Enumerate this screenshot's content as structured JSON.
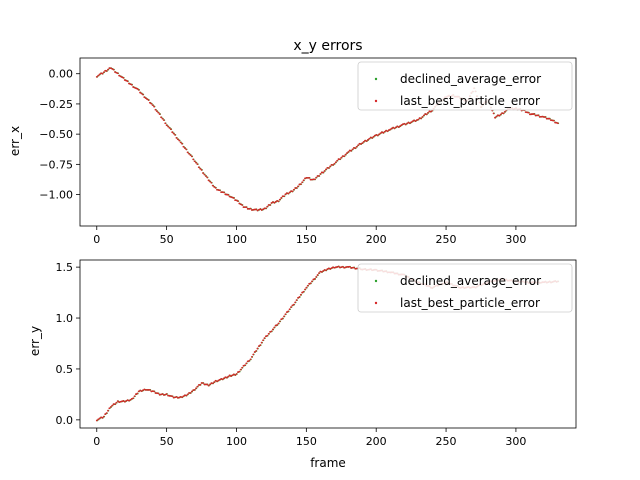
{
  "chart_data": [
    {
      "type": "scatter",
      "title": "x_y errors",
      "xlabel": "",
      "ylabel": "err_x",
      "xlim": [
        -12,
        343
      ],
      "ylim": [
        -1.26,
        0.13
      ],
      "xticks": [
        0,
        50,
        100,
        150,
        200,
        250,
        300
      ],
      "yticks": [
        0.0,
        -0.25,
        -0.5,
        -0.75,
        -1.0
      ],
      "ytick_labels": [
        "0.00",
        "−0.25",
        "−0.50",
        "−0.75",
        "−1.00"
      ],
      "legend_position": "upper right",
      "series": [
        {
          "name": "declined_average_error",
          "color": "#2ca02c"
        },
        {
          "name": "last_best_particle_error",
          "color": "#d62728"
        }
      ],
      "x": [
        0,
        5,
        10,
        15,
        20,
        30,
        40,
        50,
        60,
        70,
        75,
        80,
        85,
        90,
        95,
        100,
        105,
        110,
        115,
        120,
        125,
        130,
        135,
        140,
        145,
        150,
        155,
        160,
        170,
        180,
        190,
        200,
        210,
        220,
        230,
        240,
        245,
        250,
        255,
        260,
        265,
        270,
        275,
        280,
        285,
        290,
        295,
        300,
        305,
        310,
        320,
        325,
        330
      ],
      "y": [
        -0.02,
        0.01,
        0.05,
        0.0,
        -0.05,
        -0.14,
        -0.26,
        -0.42,
        -0.57,
        -0.72,
        -0.8,
        -0.88,
        -0.95,
        -0.98,
        -1.01,
        -1.05,
        -1.1,
        -1.12,
        -1.13,
        -1.12,
        -1.07,
        -1.05,
        -1.0,
        -0.97,
        -0.92,
        -0.86,
        -0.88,
        -0.83,
        -0.74,
        -0.65,
        -0.57,
        -0.51,
        -0.46,
        -0.42,
        -0.38,
        -0.3,
        -0.24,
        -0.19,
        -0.18,
        -0.2,
        -0.23,
        -0.12,
        -0.27,
        -0.22,
        -0.36,
        -0.33,
        -0.29,
        -0.29,
        -0.3,
        -0.33,
        -0.36,
        -0.38,
        -0.41
      ]
    },
    {
      "type": "scatter",
      "title": "",
      "xlabel": "frame",
      "ylabel": "err_y",
      "xlim": [
        -12,
        343
      ],
      "ylim": [
        -0.08,
        1.57
      ],
      "xticks": [
        0,
        50,
        100,
        150,
        200,
        250,
        300
      ],
      "yticks": [
        0.0,
        0.5,
        1.0,
        1.5
      ],
      "ytick_labels": [
        "0.0",
        "0.5",
        "1.0",
        "1.5"
      ],
      "legend_position": "upper right",
      "series": [
        {
          "name": "declined_average_error",
          "color": "#2ca02c"
        },
        {
          "name": "last_best_particle_error",
          "color": "#d62728"
        }
      ],
      "x": [
        0,
        5,
        10,
        15,
        20,
        25,
        30,
        35,
        40,
        45,
        50,
        55,
        60,
        65,
        70,
        75,
        80,
        85,
        90,
        95,
        100,
        110,
        120,
        130,
        140,
        150,
        160,
        165,
        170,
        180,
        190,
        200,
        210,
        220,
        230,
        240,
        250,
        260,
        270,
        280,
        290,
        300,
        310,
        320,
        330
      ],
      "y": [
        0.0,
        0.03,
        0.13,
        0.18,
        0.18,
        0.2,
        0.28,
        0.3,
        0.28,
        0.25,
        0.25,
        0.22,
        0.22,
        0.25,
        0.3,
        0.36,
        0.34,
        0.38,
        0.4,
        0.43,
        0.45,
        0.6,
        0.8,
        0.95,
        1.12,
        1.3,
        1.45,
        1.48,
        1.5,
        1.5,
        1.48,
        1.47,
        1.45,
        1.42,
        1.35,
        1.3,
        1.35,
        1.3,
        1.3,
        1.35,
        1.38,
        1.36,
        1.35,
        1.35,
        1.36
      ]
    }
  ]
}
